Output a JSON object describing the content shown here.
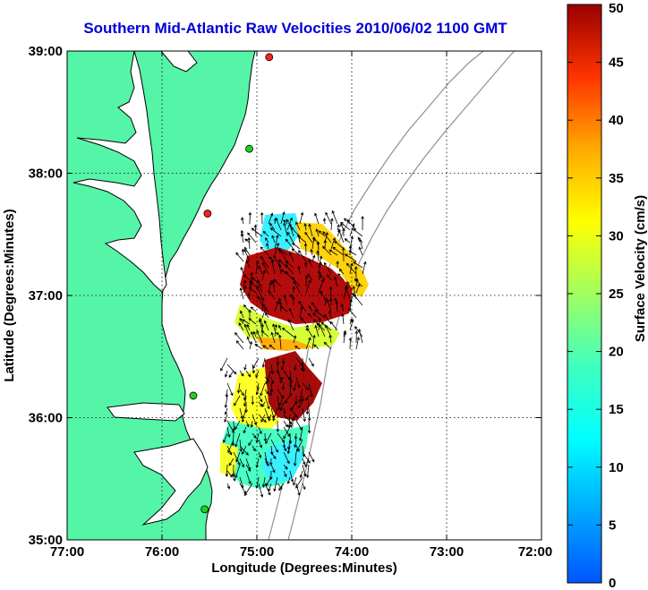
{
  "title": "Southern Mid-Atlantic Raw Velocities 2010/06/02 1100 GMT",
  "map": {
    "xlabel": "Longitude (Degrees:Minutes)",
    "ylabel": "Latitude (Degrees:Minutes)",
    "lon_range": [
      -77,
      -72
    ],
    "lat_range": [
      35,
      39
    ],
    "x_ticks": [
      {
        "lon": -77,
        "label": "77:00"
      },
      {
        "lon": -76,
        "label": "76:00"
      },
      {
        "lon": -75,
        "label": "75:00"
      },
      {
        "lon": -74,
        "label": "74:00"
      },
      {
        "lon": -73,
        "label": "73:00"
      },
      {
        "lon": -72,
        "label": "72:00"
      }
    ],
    "y_ticks": [
      {
        "lat": 39,
        "label": "39:00"
      },
      {
        "lat": 38,
        "label": "38:00"
      },
      {
        "lat": 37,
        "label": "37:00"
      },
      {
        "lat": 36,
        "label": "36:00"
      },
      {
        "lat": 35,
        "label": "35:00"
      }
    ],
    "grid": "dotted",
    "land_color": "#55f5a8",
    "stations": [
      {
        "lon": -74.87,
        "lat": 38.95,
        "color": "#ff2020"
      },
      {
        "lon": -75.08,
        "lat": 38.2,
        "color": "#20d020"
      },
      {
        "lon": -75.52,
        "lat": 37.67,
        "color": "#ff2020"
      },
      {
        "lon": -75.67,
        "lat": 36.18,
        "color": "#20d020"
      },
      {
        "lon": -75.55,
        "lat": 35.25,
        "color": "#20d020"
      }
    ]
  },
  "colorbar": {
    "label": "Surface Velocity (cm/s)",
    "min": 0,
    "max": 50,
    "ticks": [
      "0",
      "5",
      "10",
      "15",
      "20",
      "25",
      "30",
      "35",
      "40",
      "45",
      "50"
    ]
  }
}
